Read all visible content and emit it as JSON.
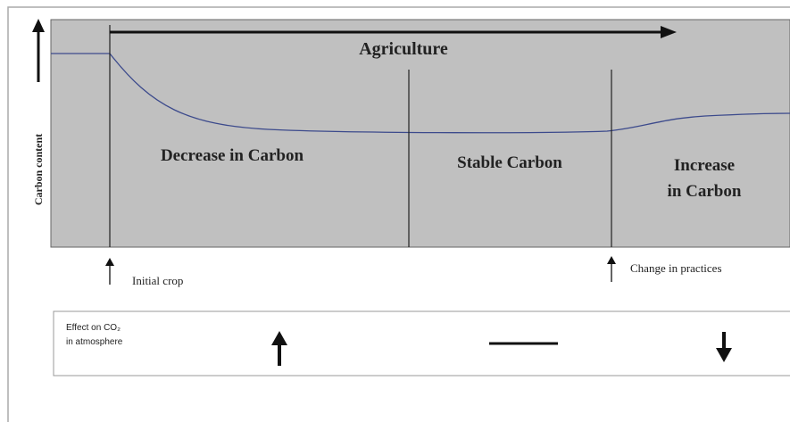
{
  "diagram": {
    "title": "Agriculture",
    "y_axis_label": "Carbon content",
    "phases": [
      {
        "lines": [
          "Decrease in Carbon"
        ]
      },
      {
        "lines": [
          "Stable Carbon"
        ]
      },
      {
        "lines": [
          "Increase",
          "in Carbon"
        ]
      }
    ],
    "events": [
      "Initial crop",
      "Change in practices"
    ],
    "effect_label": [
      "Effect on CO₂",
      "in atmosphere"
    ]
  }
}
